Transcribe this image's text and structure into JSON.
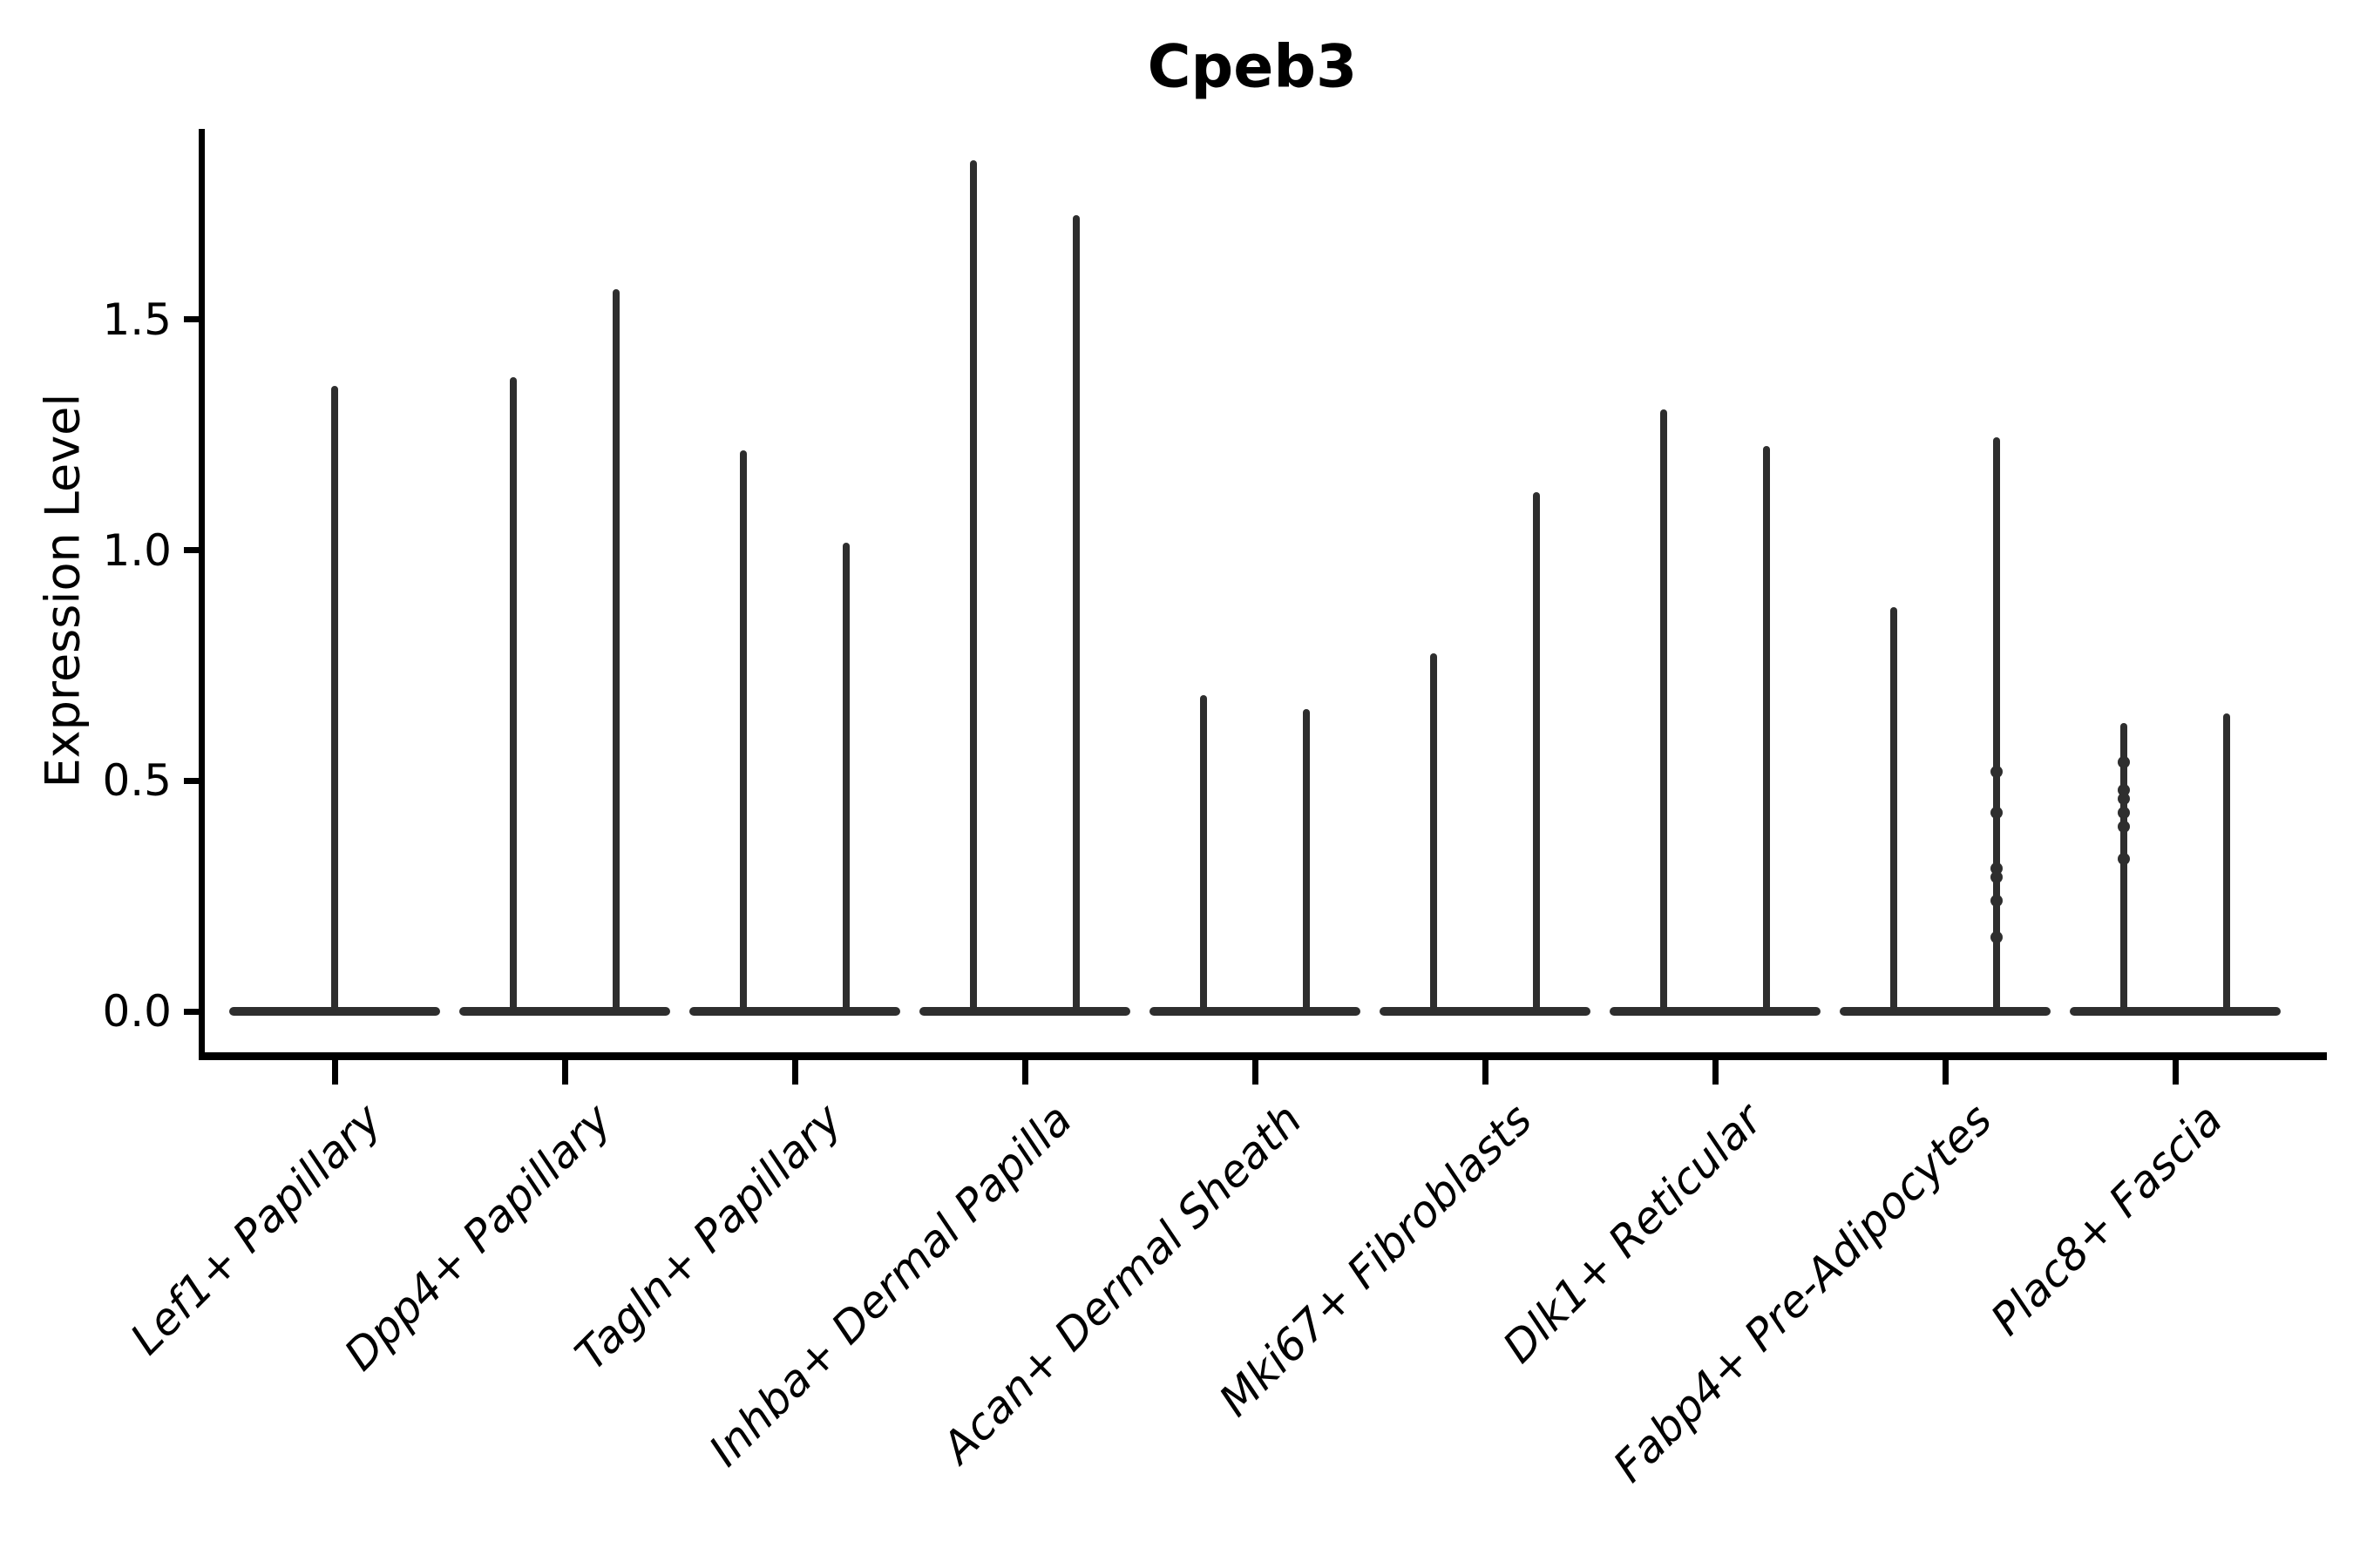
{
  "chart_data": {
    "type": "violin",
    "title": "Cpeb3",
    "ylabel": "Expression Level",
    "xlabel": "",
    "grid": false,
    "legend": null,
    "background": "#ffffff",
    "axis_color": "#000000",
    "violin_color": "#2e2e2e",
    "ylim": [
      -0.11,
      1.91
    ],
    "yticks": [
      {
        "value": 0.0,
        "label": "0.0"
      },
      {
        "value": 0.5,
        "label": "0.5"
      },
      {
        "value": 1.0,
        "label": "1.0"
      },
      {
        "value": 1.5,
        "label": "1.5"
      }
    ],
    "x_tick_rotation_deg": 45,
    "categories": [
      "Lef1+ Papillary",
      "Dpp4+ Papillary",
      "Tagln+ Papillary",
      "Inhba+ Dermal Papilla",
      "Acan+ Dermal Sheath",
      "Mki67+ Fibroblasts",
      "Dlk1+ Reticular",
      "Fabp4+ Pre-Adipocytes",
      "Plac8+ Fascia"
    ],
    "violins": [
      {
        "label": "Lef1+ Papillary",
        "spikes": [
          {
            "position": "center",
            "offset": 0.0,
            "max": 1.35
          }
        ]
      },
      {
        "label": "Dpp4+ Papillary",
        "spikes": [
          {
            "position": "left",
            "offset": -0.223,
            "max": 1.37
          },
          {
            "position": "right",
            "offset": 0.223,
            "max": 1.56
          }
        ]
      },
      {
        "label": "Tagln+ Papillary",
        "spikes": [
          {
            "position": "left",
            "offset": -0.223,
            "max": 1.21
          },
          {
            "position": "right",
            "offset": 0.223,
            "max": 1.01
          }
        ]
      },
      {
        "label": "Inhba+ Dermal Papilla",
        "spikes": [
          {
            "position": "left",
            "offset": -0.223,
            "max": 1.84
          },
          {
            "position": "right",
            "offset": 0.223,
            "max": 1.72
          }
        ]
      },
      {
        "label": "Acan+ Dermal Sheath",
        "spikes": [
          {
            "position": "left",
            "offset": -0.223,
            "max": 0.68
          },
          {
            "position": "right",
            "offset": 0.223,
            "max": 0.65
          }
        ]
      },
      {
        "label": "Mki67+ Fibroblasts",
        "spikes": [
          {
            "position": "left",
            "offset": -0.223,
            "max": 0.77
          },
          {
            "position": "right",
            "offset": 0.223,
            "max": 1.12
          }
        ]
      },
      {
        "label": "Dlk1+ Reticular",
        "spikes": [
          {
            "position": "left",
            "offset": -0.223,
            "max": 1.3
          },
          {
            "position": "right",
            "offset": 0.223,
            "max": 1.22
          }
        ]
      },
      {
        "label": "Fabp4+ Pre-Adipocytes",
        "spikes": [
          {
            "position": "left",
            "offset": -0.223,
            "max": 0.87
          },
          {
            "position": "right",
            "offset": 0.223,
            "max": 1.24
          }
        ]
      },
      {
        "label": "Plac8+ Fascia",
        "spikes": [
          {
            "position": "left",
            "offset": -0.223,
            "max": 0.62
          },
          {
            "position": "right",
            "offset": 0.223,
            "max": 0.64
          }
        ]
      }
    ],
    "jitter_points": [
      {
        "category": "Fabp4+ Pre-Adipocytes",
        "offset": 0.223,
        "values": [
          0.52,
          0.43,
          0.31,
          0.29,
          0.24,
          0.16
        ]
      },
      {
        "category": "Plac8+ Fascia",
        "offset": -0.223,
        "values": [
          0.54,
          0.48,
          0.46,
          0.43,
          0.4,
          0.33
        ]
      }
    ]
  }
}
